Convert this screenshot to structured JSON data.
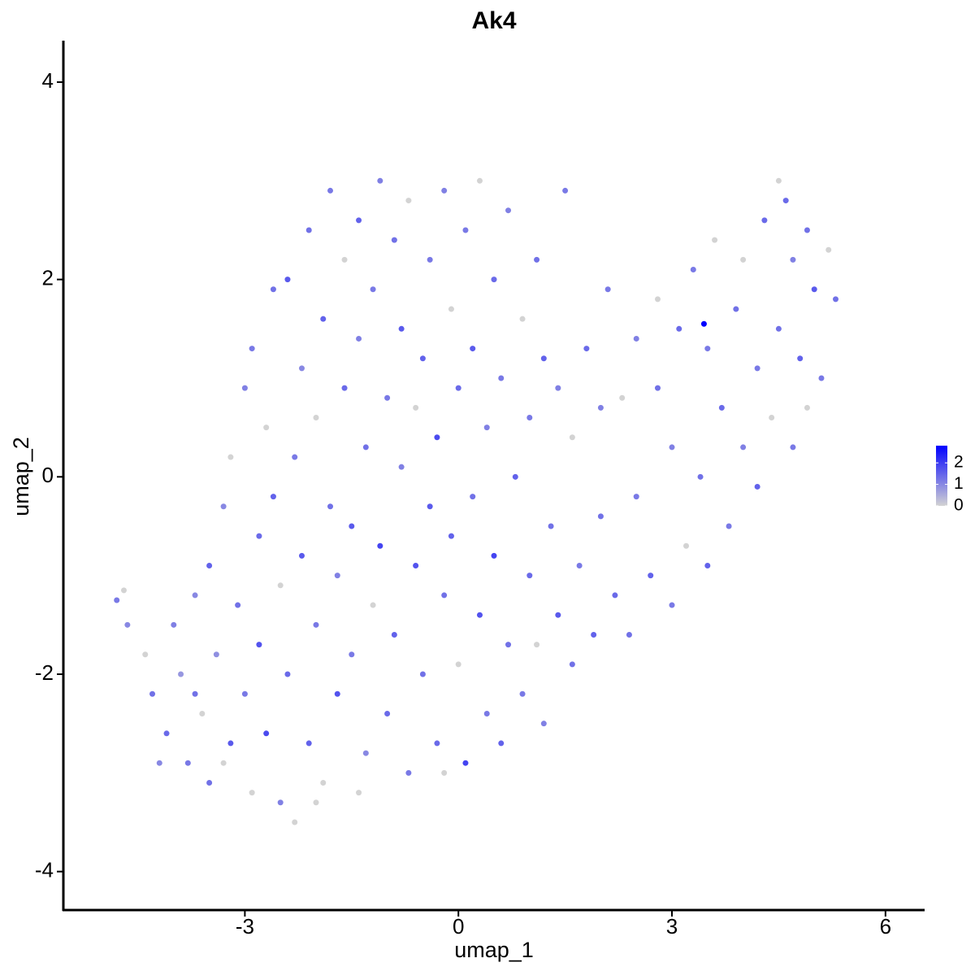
{
  "chart_data": {
    "type": "scatter",
    "title": "Ak4",
    "xlabel": "umap_1",
    "ylabel": "umap_2",
    "xlim": [
      -5.55,
      6.55
    ],
    "ylim": [
      -4.39,
      4.42
    ],
    "xticks": [
      -3,
      0,
      3,
      6
    ],
    "yticks": [
      -4,
      -2,
      0,
      2,
      4
    ],
    "colors": [
      "#d3d3d3",
      "#0000ff"
    ],
    "colorlim": [
      0,
      2.8
    ],
    "colorticks": [
      0,
      1,
      2
    ],
    "x": [
      -4.8,
      -4.7,
      -4.65,
      -4.4,
      -4.3,
      -4.1,
      -4.0,
      -3.9,
      -3.8,
      -3.7,
      -3.6,
      -3.5,
      -3.5,
      -3.4,
      -3.3,
      -3.2,
      -3.2,
      -3.1,
      -3.0,
      -3.0,
      -2.9,
      -2.9,
      -2.8,
      -2.8,
      -2.7,
      -2.7,
      -2.6,
      -2.6,
      -2.5,
      -2.5,
      -2.4,
      -2.4,
      -2.3,
      -2.3,
      -2.2,
      -2.2,
      -2.1,
      -2.1,
      -2.0,
      -2.0,
      -1.9,
      -1.9,
      -1.8,
      -1.8,
      -1.7,
      -1.7,
      -1.6,
      -1.6,
      -1.5,
      -1.5,
      -1.4,
      -1.4,
      -1.3,
      -1.3,
      -1.2,
      -1.2,
      -1.1,
      -1.1,
      -1.0,
      -1.0,
      -0.9,
      -0.9,
      -0.8,
      -0.8,
      -0.7,
      -0.7,
      -0.6,
      -0.6,
      -0.5,
      -0.5,
      -0.4,
      -0.4,
      -0.3,
      -0.3,
      -0.2,
      -0.2,
      -0.1,
      -0.1,
      0.0,
      0.0,
      0.1,
      0.1,
      0.2,
      0.2,
      0.3,
      0.3,
      0.4,
      0.4,
      0.5,
      0.5,
      0.6,
      0.6,
      0.7,
      0.7,
      0.8,
      0.9,
      0.9,
      1.0,
      1.0,
      1.1,
      1.1,
      1.2,
      1.2,
      1.3,
      1.4,
      1.4,
      1.5,
      1.6,
      1.6,
      1.7,
      1.8,
      1.9,
      2.0,
      2.0,
      2.1,
      2.2,
      2.3,
      2.4,
      2.5,
      2.5,
      2.7,
      2.8,
      2.8,
      3.0,
      3.0,
      3.1,
      3.2,
      3.3,
      3.4,
      3.5,
      3.5,
      3.6,
      3.7,
      3.8,
      3.9,
      4.0,
      4.0,
      4.2,
      4.2,
      4.3,
      4.4,
      4.5,
      4.5,
      4.6,
      4.7,
      4.7,
      4.8,
      4.9,
      4.9,
      5.0,
      5.1,
      5.2,
      5.3,
      3.45,
      -4.2,
      -3.7,
      -3.3,
      -2.0,
      -1.4,
      -0.2
    ],
    "y": [
      -1.25,
      -1.15,
      -1.5,
      -1.8,
      -2.2,
      -2.6,
      -1.5,
      -2.0,
      -2.9,
      -1.2,
      -2.4,
      -3.1,
      -0.9,
      -1.8,
      -0.3,
      -2.7,
      0.2,
      -1.3,
      -2.2,
      0.9,
      -3.2,
      1.3,
      -0.6,
      -1.7,
      -2.6,
      0.5,
      1.9,
      -0.2,
      -1.1,
      -3.3,
      -2.0,
      2.0,
      0.2,
      -3.5,
      -0.8,
      1.1,
      -2.7,
      2.5,
      -1.5,
      0.6,
      -3.1,
      1.6,
      -0.3,
      2.9,
      -2.2,
      -1.0,
      0.9,
      2.2,
      -1.8,
      -0.5,
      1.4,
      2.6,
      -2.8,
      0.3,
      -1.3,
      1.9,
      -0.7,
      3.0,
      -2.4,
      0.8,
      2.4,
      -1.6,
      0.1,
      1.5,
      -3.0,
      2.8,
      -0.9,
      0.7,
      -2.0,
      1.2,
      2.2,
      -0.3,
      -2.7,
      0.4,
      -1.2,
      2.9,
      1.7,
      -0.6,
      -1.9,
      0.9,
      -2.9,
      2.5,
      -0.2,
      1.3,
      -1.4,
      3.0,
      -2.4,
      0.5,
      2.0,
      -0.8,
      -2.7,
      1.0,
      -1.7,
      2.7,
      0.0,
      -2.2,
      1.6,
      -1.0,
      0.6,
      -1.7,
      2.2,
      -2.5,
      1.2,
      -0.5,
      -1.4,
      0.9,
      2.9,
      -1.9,
      0.4,
      -0.9,
      1.3,
      -1.6,
      0.7,
      -0.4,
      1.9,
      -1.2,
      0.8,
      -1.6,
      -0.2,
      1.4,
      -1.0,
      0.9,
      1.8,
      -1.3,
      0.3,
      1.5,
      -0.7,
      2.1,
      0.0,
      -0.9,
      1.3,
      2.4,
      0.7,
      -0.5,
      1.7,
      0.3,
      2.2,
      -0.1,
      1.1,
      2.6,
      0.6,
      1.5,
      3.0,
      2.8,
      0.3,
      2.2,
      1.2,
      0.7,
      2.5,
      1.9,
      1.0,
      2.3,
      1.8,
      1.55,
      -2.9,
      -2.2,
      -2.9,
      -3.3,
      -3.2,
      -3.0
    ],
    "values": [
      1.2,
      0,
      1,
      0,
      1.3,
      1.4,
      1.1,
      0.8,
      1.2,
      1,
      0,
      1.3,
      1.5,
      0.9,
      1,
      1.6,
      0,
      1.3,
      1.2,
      1.1,
      0,
      1.2,
      1.4,
      1.7,
      1.8,
      0,
      1.3,
      1.5,
      0,
      1.1,
      1.4,
      1.6,
      1.2,
      0,
      1.6,
      1,
      1.5,
      1.3,
      1.2,
      0,
      0,
      1.5,
      1.3,
      1.2,
      1.7,
      1.1,
      1.4,
      0,
      1.2,
      1.6,
      1.1,
      1.5,
      1,
      1.3,
      0,
      1.2,
      1.9,
      1.1,
      1.4,
      1.2,
      1.3,
      1.5,
      1.1,
      1.6,
      1.2,
      0,
      1.7,
      0,
      1.3,
      1.5,
      1.2,
      1.6,
      1.4,
      1.8,
      1.3,
      1.1,
      0,
      1.5,
      0,
      1.4,
      1.9,
      1.2,
      1.3,
      1.6,
      1.7,
      0,
      1.2,
      1.1,
      1.4,
      1.9,
      1.5,
      1.2,
      1.3,
      1.1,
      1.5,
      1.2,
      0,
      1.4,
      1.2,
      0,
      1.3,
      1.1,
      1.5,
      1.3,
      1.6,
      1.1,
      1.2,
      1.3,
      0,
      1.2,
      1.4,
      1.5,
      1.1,
      1.3,
      1.2,
      1.4,
      0,
      1.3,
      1.2,
      1.1,
      1.5,
      1.3,
      0,
      1.2,
      1.1,
      1.4,
      0,
      1.2,
      1.3,
      1.5,
      1.2,
      0,
      1.4,
      1.2,
      1.3,
      1.1,
      0,
      1.5,
      1.2,
      1.4,
      0,
      1.3,
      0,
      1.4,
      1.2,
      1.1,
      1.5,
      0,
      1.3,
      1.6,
      1.2,
      0,
      1.3,
      2.8,
      1,
      1.3,
      0,
      0,
      0,
      0
    ]
  }
}
